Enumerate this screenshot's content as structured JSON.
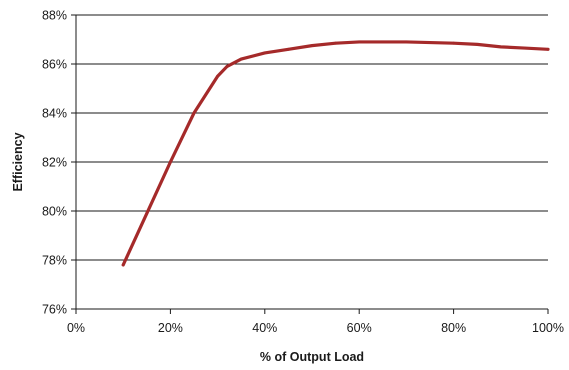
{
  "chart_data": {
    "type": "line",
    "title": "",
    "xlabel": "% of Output Load",
    "ylabel": "Efficiency",
    "xlim": [
      0,
      100
    ],
    "ylim": [
      76,
      88
    ],
    "x_ticks": [
      0,
      20,
      40,
      60,
      80,
      100
    ],
    "x_tick_labels": [
      "0%",
      "20%",
      "40%",
      "60%",
      "80%",
      "100%"
    ],
    "y_ticks": [
      76,
      78,
      80,
      82,
      84,
      86,
      88
    ],
    "y_tick_labels": [
      "76%",
      "78%",
      "80%",
      "82%",
      "84%",
      "86%",
      "88%"
    ],
    "grid": "horizontal",
    "legend": "none",
    "series": [
      {
        "color": "#a52a2a",
        "x": [
          10,
          15,
          20,
          25,
          30,
          32,
          35,
          40,
          45,
          50,
          55,
          60,
          65,
          70,
          80,
          85,
          90,
          95,
          100
        ],
        "y": [
          77.8,
          79.9,
          82.0,
          84.0,
          85.5,
          85.9,
          86.2,
          86.45,
          86.6,
          86.75,
          86.85,
          86.9,
          86.9,
          86.9,
          86.85,
          86.8,
          86.7,
          86.65,
          86.6
        ]
      }
    ]
  }
}
